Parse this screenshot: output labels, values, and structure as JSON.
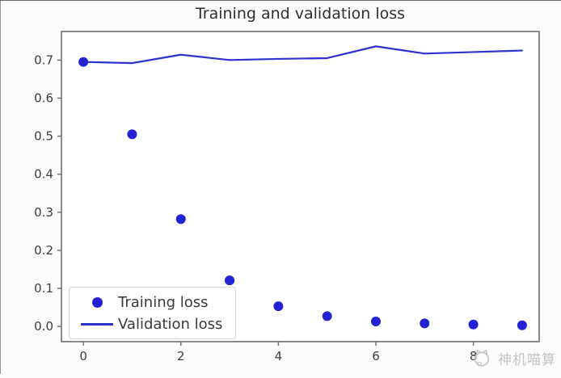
{
  "chart_data": {
    "type": "line+scatter",
    "title": "Training and validation loss",
    "x": [
      0,
      1,
      2,
      3,
      4,
      5,
      6,
      7,
      8,
      9
    ],
    "series": [
      {
        "name": "Training loss",
        "style": "scatter",
        "marker": "circle",
        "color": "#2222d2",
        "values": [
          0.695,
          0.505,
          0.282,
          0.121,
          0.053,
          0.027,
          0.013,
          0.008,
          0.005,
          0.003
        ]
      },
      {
        "name": "Validation loss",
        "style": "line",
        "color": "#3030cf",
        "values": [
          0.695,
          0.692,
          0.714,
          0.7,
          0.703,
          0.705,
          0.736,
          0.717,
          0.721,
          0.725
        ]
      }
    ],
    "xlabel": "",
    "ylabel": "",
    "xticks": {
      "values": [
        0,
        2,
        4,
        6,
        8
      ],
      "labels": [
        "0",
        "2",
        "4",
        "6",
        "8"
      ]
    },
    "yticks": {
      "values": [
        0.0,
        0.1,
        0.2,
        0.3,
        0.4,
        0.5,
        0.6,
        0.7
      ],
      "labels": [
        "0.0",
        "0.1",
        "0.2",
        "0.3",
        "0.4",
        "0.5",
        "0.6",
        "0.7"
      ]
    },
    "xlim": [
      -0.45,
      9.35
    ],
    "ylim": [
      -0.04,
      0.775
    ],
    "grid": false,
    "legend": {
      "position": "lower left",
      "entries": [
        "Training loss",
        "Validation loss"
      ]
    }
  },
  "colors": {
    "series_blue": "#2222d2",
    "spine": "#6e6e6e",
    "tick_label": "#3d3d3d",
    "title": "#2f2f2f",
    "legend_border": "#d4d4d4",
    "plot_bg": "#ffffff",
    "watermark": "#c3c3c3"
  },
  "watermark": {
    "text": "神机喵算"
  }
}
